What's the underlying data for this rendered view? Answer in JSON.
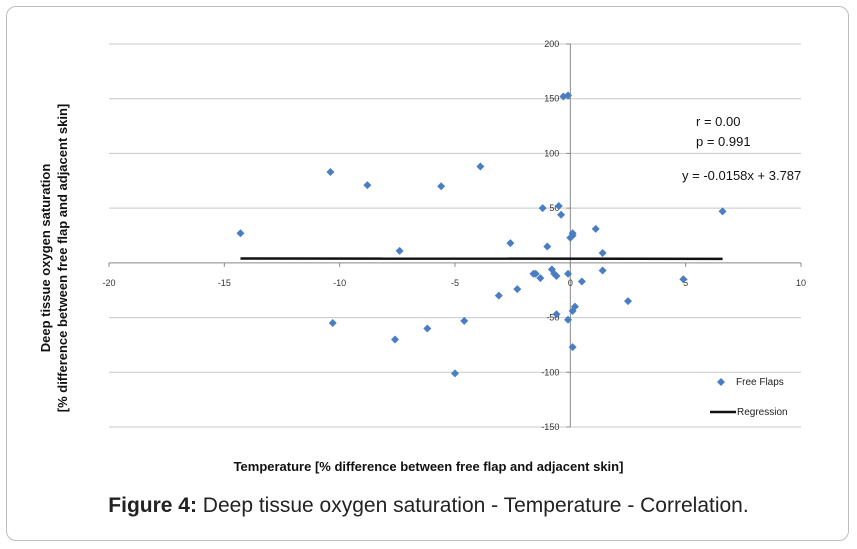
{
  "caption": {
    "label": "Figure 4:",
    "text": " Deep tissue oxygen saturation - Temperature - Correlation."
  },
  "stats": {
    "r": "r = 0.00",
    "p": "p = 0.991",
    "equation": "y  = -0.0158x + 3.787"
  },
  "colors": {
    "points": "#4a7ec4",
    "regression": "#111111",
    "grid": "#c8c8c8",
    "axis": "#888888"
  },
  "chart_data": {
    "type": "scatter",
    "xlabel": "Temperature [% difference between  free flap and adjacent skin]",
    "ylabel_lines": [
      "Deep tissue oxygen saturation",
      "[% difference between  free flap and adjacent skin]"
    ],
    "xlim": [
      -20,
      10
    ],
    "ylim": [
      -150,
      200
    ],
    "x_ticks": [
      -20,
      -15,
      -10,
      -5,
      0,
      5,
      10
    ],
    "y_ticks": [
      -150,
      -100,
      -50,
      50,
      100,
      150,
      200
    ],
    "grid": "horizontal",
    "legend_position": "bottom-right",
    "series": [
      {
        "name": "Free Flaps",
        "marker": "diamond",
        "points": [
          [
            -14.3,
            27
          ],
          [
            -10.4,
            83
          ],
          [
            -10.3,
            -55
          ],
          [
            -8.8,
            71
          ],
          [
            -7.6,
            -70
          ],
          [
            -7.4,
            11
          ],
          [
            -6.2,
            -60
          ],
          [
            -5.6,
            70
          ],
          [
            -5.0,
            -101
          ],
          [
            -4.6,
            -53
          ],
          [
            -3.9,
            88
          ],
          [
            -3.1,
            -30
          ],
          [
            -2.6,
            18
          ],
          [
            -2.3,
            -24
          ],
          [
            -1.6,
            -10
          ],
          [
            -1.5,
            -10
          ],
          [
            -1.3,
            -14
          ],
          [
            -1.2,
            50
          ],
          [
            -1.0,
            15
          ],
          [
            -0.8,
            -6
          ],
          [
            -0.7,
            -10
          ],
          [
            -0.6,
            -12
          ],
          [
            -0.6,
            -47
          ],
          [
            -0.5,
            52
          ],
          [
            -0.4,
            44
          ],
          [
            -0.3,
            152
          ],
          [
            -0.1,
            153
          ],
          [
            -0.1,
            -10
          ],
          [
            -0.1,
            -52
          ],
          [
            0.0,
            23
          ],
          [
            0.1,
            25
          ],
          [
            0.1,
            27
          ],
          [
            0.1,
            -44
          ],
          [
            0.1,
            -77
          ],
          [
            0.2,
            -40
          ],
          [
            0.5,
            -17
          ],
          [
            1.1,
            31
          ],
          [
            1.4,
            9
          ],
          [
            1.4,
            -7
          ],
          [
            2.5,
            -35
          ],
          [
            4.9,
            -15
          ],
          [
            6.6,
            47
          ]
        ]
      },
      {
        "name": "Regression",
        "type": "line",
        "slope": -0.0158,
        "intercept": 3.787,
        "x_range": [
          -14.3,
          6.6
        ]
      }
    ]
  }
}
